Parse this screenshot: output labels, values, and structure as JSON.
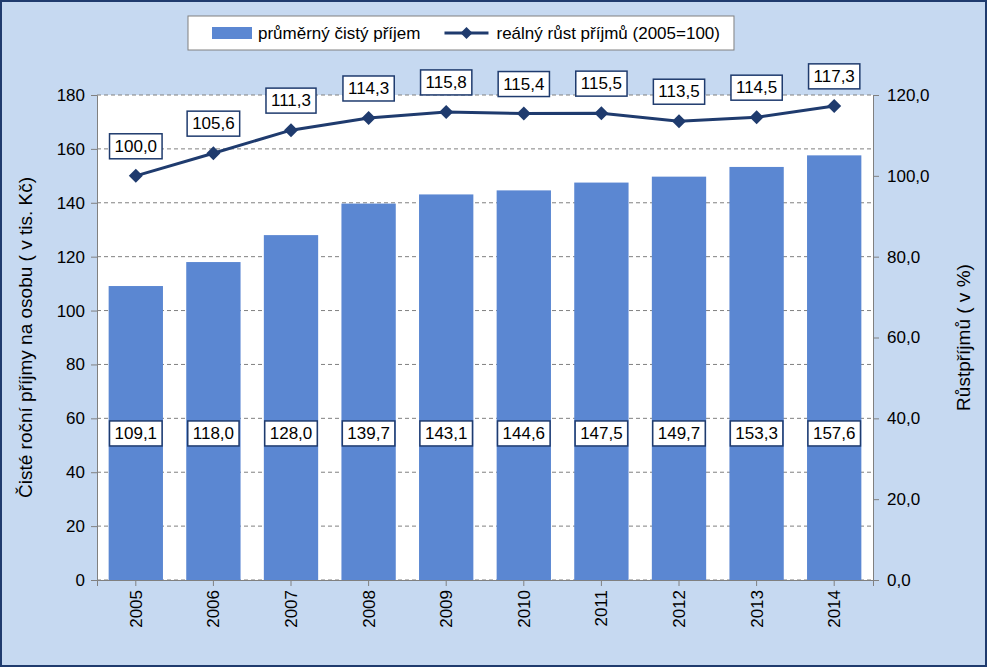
{
  "chart_data": {
    "type": "bar",
    "categories": [
      "2005",
      "2006",
      "2007",
      "2008",
      "2009",
      "2010",
      "2011",
      "2012",
      "2013",
      "2014"
    ],
    "series": [
      {
        "name": "průměrný čistý příjem",
        "type": "bar",
        "color": "#5b87d2",
        "values": [
          109.1,
          118.0,
          128.0,
          139.7,
          143.1,
          144.6,
          147.5,
          149.7,
          153.3,
          157.6
        ],
        "value_labels": [
          "109,1",
          "118,0",
          "128,0",
          "139,7",
          "143,1",
          "144,6",
          "147,5",
          "149,7",
          "153,3",
          "157,6"
        ]
      },
      {
        "name": "reálný růst příjmů (2005=100)",
        "type": "line",
        "axis": "y2",
        "color": "#1f3b6e",
        "marker": "diamond",
        "values": [
          100.0,
          105.6,
          111.3,
          114.3,
          115.8,
          115.4,
          115.5,
          113.5,
          114.5,
          117.3
        ],
        "value_labels": [
          "100,0",
          "105,6",
          "111,3",
          "114,3",
          "115,8",
          "115,4",
          "115,5",
          "113,5",
          "114,5",
          "117,3"
        ]
      }
    ],
    "y_label": "Čisté roční příjmy na osobu ( v tis. Kč)",
    "y2_label": "Růstpříjmů ( v %)",
    "ylim": [
      0,
      180
    ],
    "yticks": [
      0,
      20,
      40,
      60,
      80,
      100,
      120,
      140,
      160,
      180
    ],
    "y2lim": [
      0,
      120
    ],
    "y2ticks": [
      {
        "value": 0,
        "label": "0,0"
      },
      {
        "value": 20,
        "label": "20,0"
      },
      {
        "value": 40,
        "label": "40,0"
      },
      {
        "value": 60,
        "label": "60,0"
      },
      {
        "value": 80,
        "label": "80,0"
      },
      {
        "value": 100,
        "label": "100,0"
      },
      {
        "value": 120,
        "label": "120,0"
      }
    ],
    "grid": true,
    "legend": "top",
    "data_labels": true
  }
}
